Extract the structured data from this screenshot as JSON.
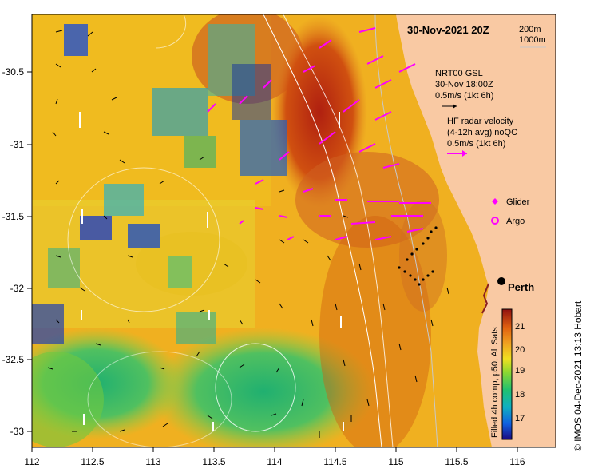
{
  "title": "30-Nov-2021 20Z",
  "depth_contours": [
    "200m",
    "1000m"
  ],
  "credit": "© IMOS 04-Dec-2021 13:13 Hobart",
  "axes": {
    "x_ticks": [
      "112",
      "112.5",
      "113",
      "113.5",
      "114",
      "114.5",
      "115",
      "115.5",
      "116"
    ],
    "y_ticks": [
      "-30.5",
      "-31",
      "-31.5",
      "-32",
      "-32.5",
      "-33"
    ],
    "x_range": [
      112,
      116.3
    ],
    "y_range": [
      -33.1,
      -30.1
    ]
  },
  "legend": {
    "gsl_line1": "NRT00 GSL",
    "gsl_line2": "30-Nov 18:00Z",
    "gsl_scale": "0.5m/s (1kt 6h)",
    "radar_line1": "HF radar velocity",
    "radar_line2": "(4-12h avg) noQC",
    "radar_scale": "0.5m/s (1kt 6h)",
    "glider_label": "Glider",
    "argo_label": "Argo"
  },
  "city": {
    "name": "Perth",
    "lon": 115.86,
    "lat": -31.95
  },
  "colorbar": {
    "label": "Filled 4h comp, p50, All Sats",
    "ticks": [
      "17",
      "18",
      "19",
      "20",
      "21"
    ],
    "min": 16.3,
    "max": 21.7
  },
  "colors": {
    "land": "#f9c9a3",
    "arrow_black": "#000000",
    "arrow_white": "#ffffff",
    "radar_arrow": "#ff00ff",
    "glider": "#ff00ff",
    "contour": "#ffffff"
  }
}
